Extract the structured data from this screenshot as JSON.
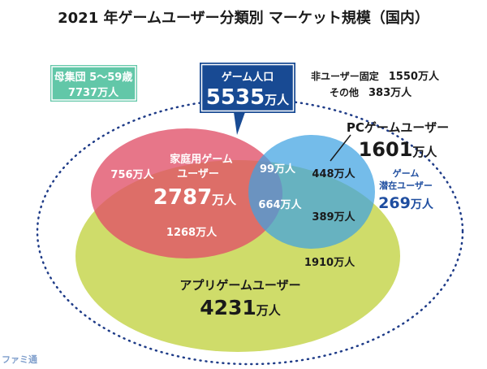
{
  "title": "2021 年ゲームユーザー分類別 マーケット規模（国内）",
  "colors": {
    "navy": "#184a93",
    "mint": "#62c7a8",
    "pink": "#e46677",
    "blue": "#4fa9e4",
    "yellow_green": "#cfdc6a",
    "dotted": "#1f3c88"
  },
  "population": {
    "label": "母集団 5〜59歳",
    "value": "7737万人"
  },
  "game_population": {
    "label": "ゲーム人口",
    "value": "5535",
    "unit": "万人"
  },
  "non_users": {
    "fixed_label": "非ユーザー固定",
    "fixed_value": "1550万人",
    "other_label": "その他",
    "other_value": "383万人"
  },
  "home": {
    "label_line1": "家庭用ゲーム",
    "label_line2": "ユーザー",
    "value": "2787",
    "unit": "万人"
  },
  "pc": {
    "label": "PCゲームユーザー",
    "value": "1601",
    "unit": "万人"
  },
  "app": {
    "label": "アプリゲームユーザー",
    "value": "4231",
    "unit": "万人"
  },
  "latent": {
    "label_line1": "ゲーム",
    "label_line2": "潜在ユーザー",
    "value": "269",
    "unit": "万人"
  },
  "segments": {
    "home_only": "756万人",
    "home_pc": "99万人",
    "pc_only": "448万人",
    "all_three": "664万人",
    "pc_app": "389万人",
    "home_app": "1268万人",
    "app_only": "1910万人"
  },
  "watermark": "ファミ通"
}
